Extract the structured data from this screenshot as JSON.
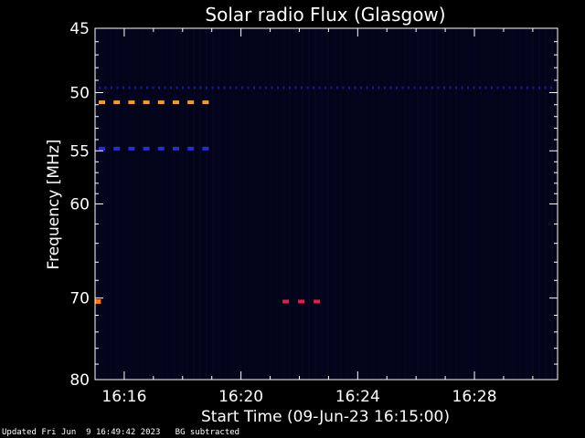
{
  "chart_data": {
    "type": "heatmap",
    "title": "Solar radio Flux (Glasgow)",
    "xlabel": "Start Time (09-Jun-23 16:15:00)",
    "ylabel": "Frequency [MHz]",
    "x_tick_labels": [
      "16:16",
      "16:20",
      "16:24",
      "16:28"
    ],
    "x_tick_minutes": [
      16,
      20,
      24,
      28
    ],
    "xlim_minutes": [
      15.0,
      30.85
    ],
    "y_tick_labels": [
      "45",
      "50",
      "55",
      "60",
      "70",
      "80"
    ],
    "y_tick_values": [
      45,
      50,
      55,
      60,
      70,
      80
    ],
    "ylim": [
      45,
      80
    ],
    "background_color": "#03031a",
    "features": [
      {
        "frequency_mhz": 50.8,
        "start_min": 15.0,
        "end_min": 19.0,
        "color": "#ff9a2e",
        "kind": "dashed-band"
      },
      {
        "frequency_mhz": 54.8,
        "start_min": 15.0,
        "end_min": 19.0,
        "color": "#2a2ad8",
        "kind": "dashed-band"
      },
      {
        "frequency_mhz": 49.6,
        "start_min": 15.0,
        "end_min": 30.85,
        "color": "#1a1a90",
        "kind": "dotted-band"
      },
      {
        "frequency_mhz": 70.4,
        "start_min": 21.3,
        "end_min": 22.9,
        "color": "#e0204a",
        "kind": "dashed-band"
      },
      {
        "frequency_mhz": 70.4,
        "start_min": 15.0,
        "end_min": 15.2,
        "color": "#ff7a1a",
        "kind": "point"
      }
    ]
  },
  "footer": {
    "updated": "Updated Fri Jun  9 16:49:42 2023",
    "bg_note": "BG subtracted"
  }
}
